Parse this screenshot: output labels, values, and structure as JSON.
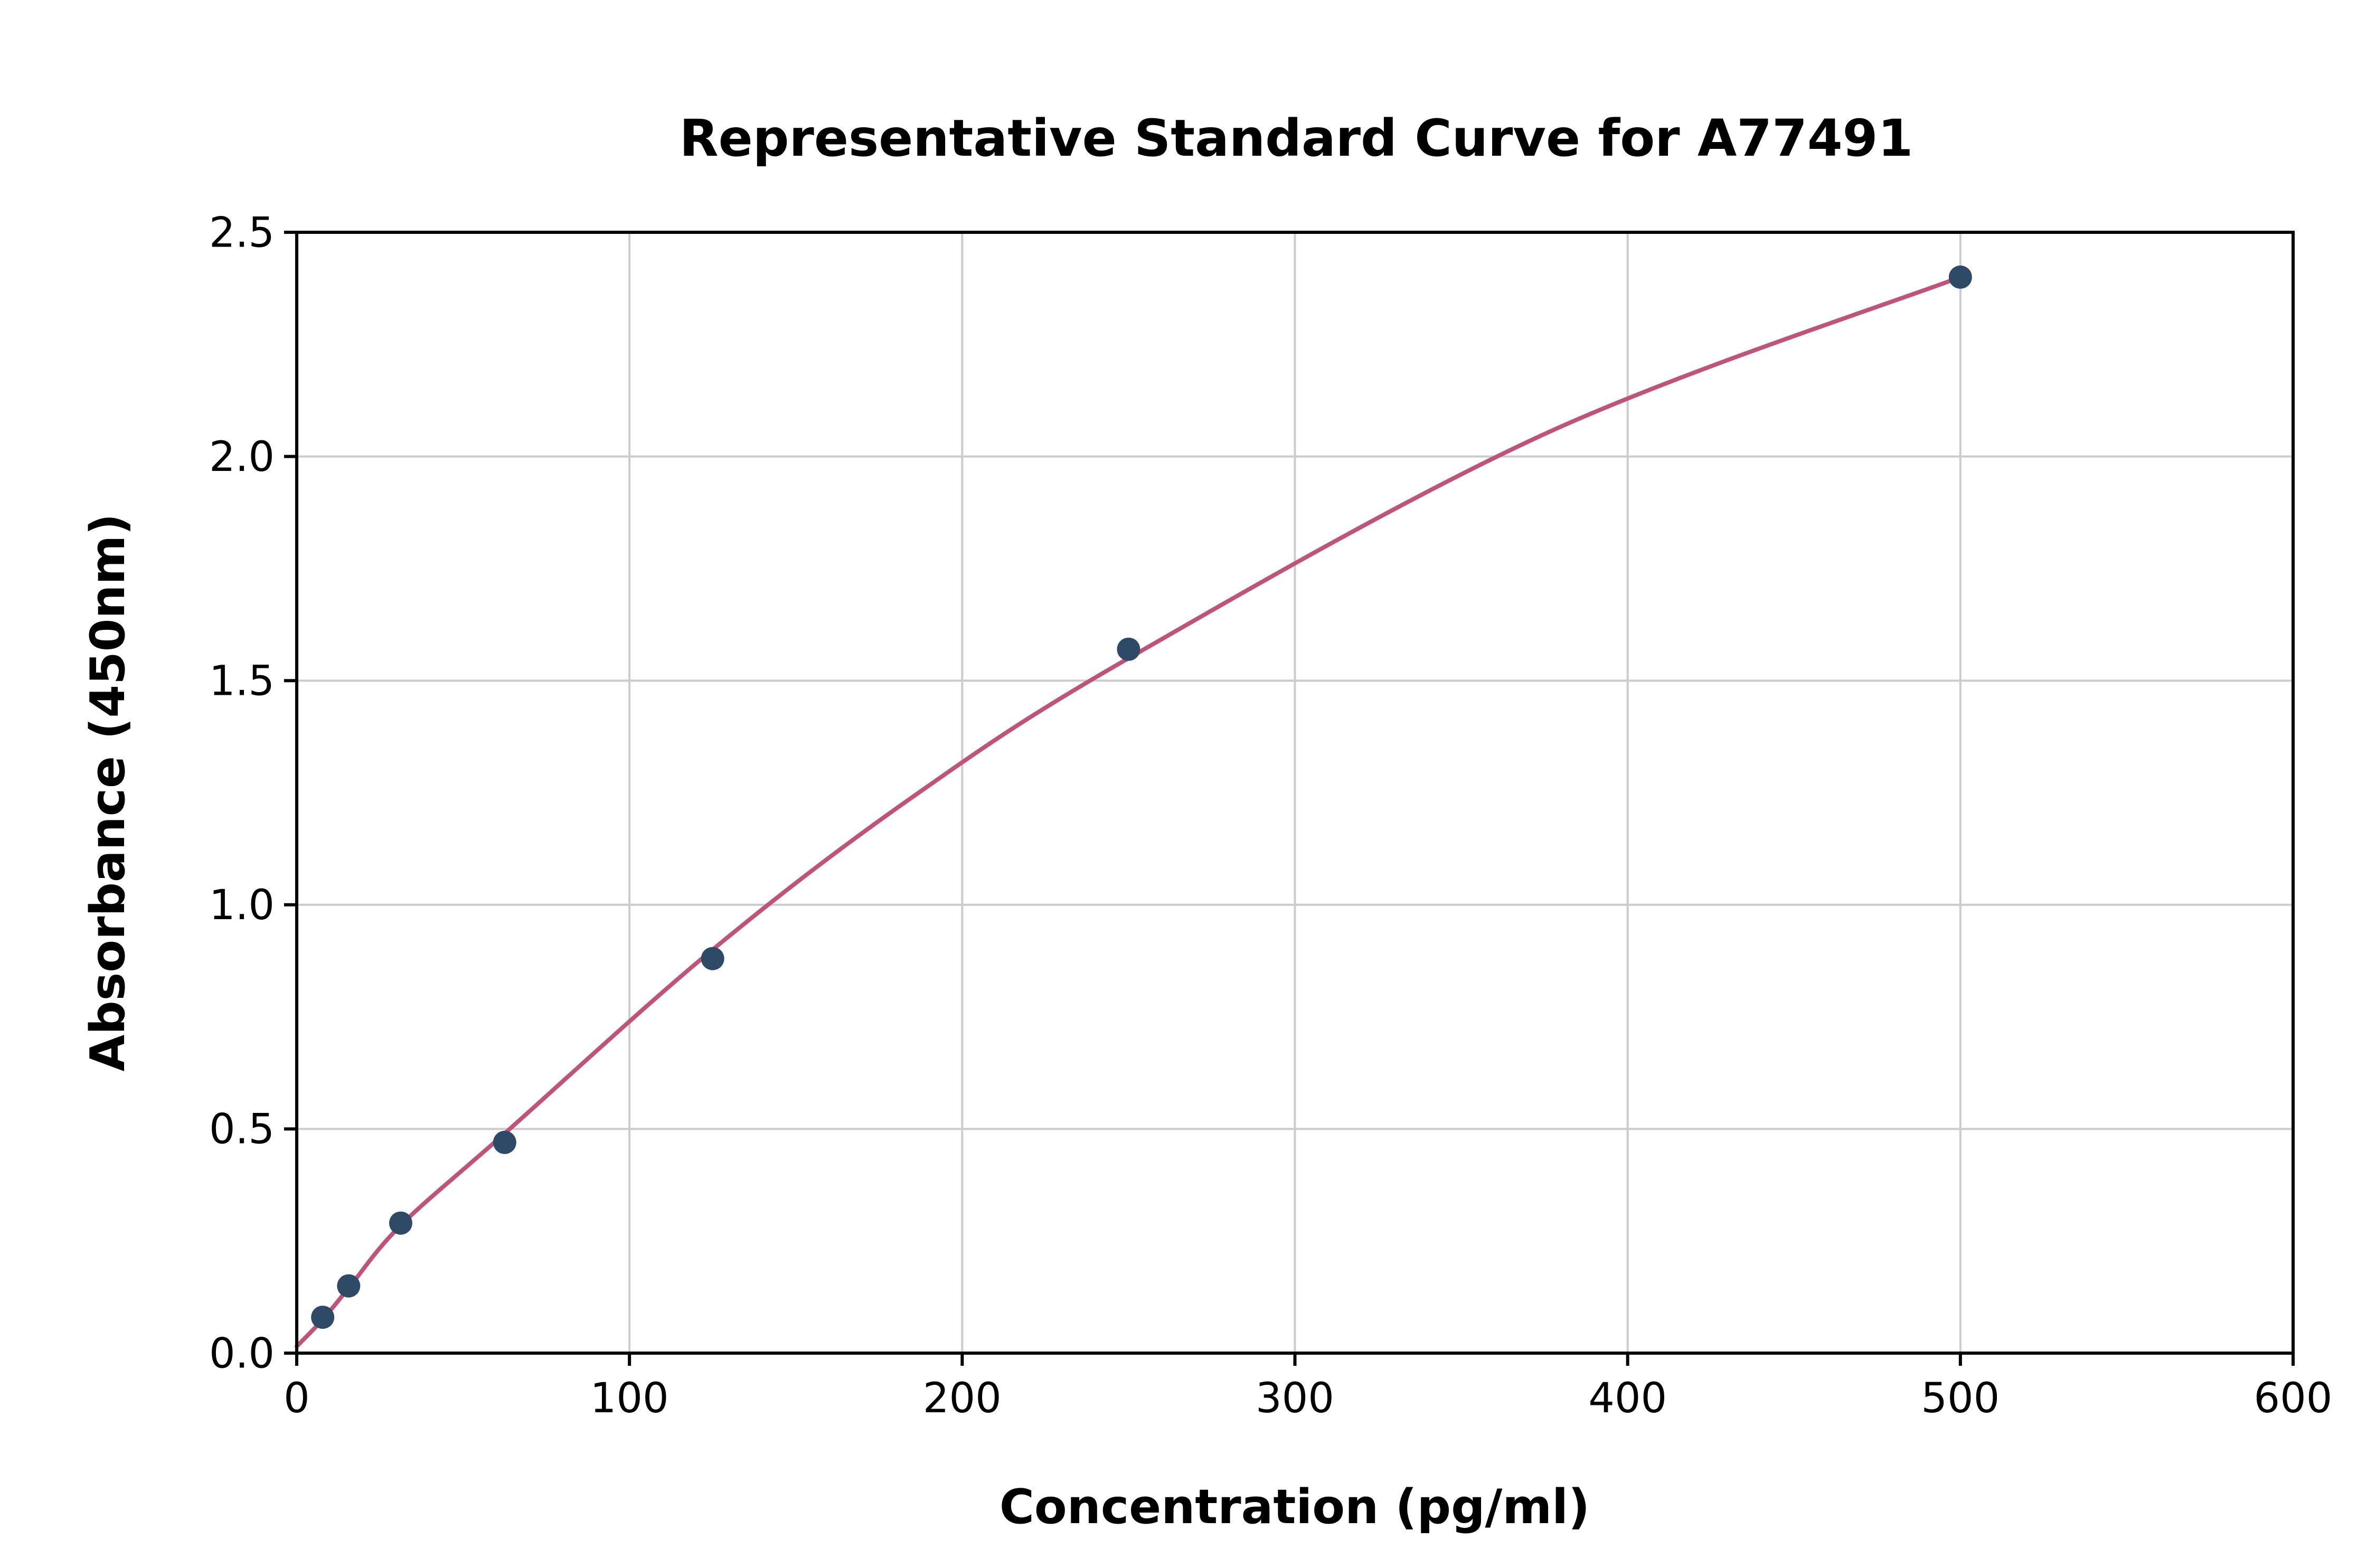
{
  "chart_data": {
    "type": "scatter",
    "title": "Representative Standard Curve for A77491",
    "xlabel": "Concentration (pg/ml)",
    "ylabel": "Absorbance (450nm)",
    "xlim": [
      0,
      600
    ],
    "ylim": [
      0,
      2.5
    ],
    "xticks": [
      0,
      100,
      200,
      300,
      400,
      500,
      600
    ],
    "xtick_labels": [
      "0",
      "100",
      "200",
      "300",
      "400",
      "500",
      "600"
    ],
    "yticks": [
      0,
      0.5,
      1.0,
      1.5,
      2.0,
      2.5
    ],
    "ytick_labels": [
      "0.0",
      "0.5",
      "1.0",
      "1.5",
      "2.0",
      "2.5"
    ],
    "grid": true,
    "legend": "none",
    "points": [
      {
        "x": 7.8,
        "y": 0.08
      },
      {
        "x": 15.6,
        "y": 0.15
      },
      {
        "x": 31.25,
        "y": 0.29
      },
      {
        "x": 62.5,
        "y": 0.47
      },
      {
        "x": 125,
        "y": 0.88
      },
      {
        "x": 250,
        "y": 1.57
      },
      {
        "x": 500,
        "y": 2.4
      }
    ],
    "curve_points": [
      {
        "x": 0,
        "y": 0.015
      },
      {
        "x": 7.8,
        "y": 0.075
      },
      {
        "x": 15.6,
        "y": 0.145
      },
      {
        "x": 31.25,
        "y": 0.285
      },
      {
        "x": 62.5,
        "y": 0.49
      },
      {
        "x": 125,
        "y": 0.9
      },
      {
        "x": 185,
        "y": 1.24
      },
      {
        "x": 250,
        "y": 1.55
      },
      {
        "x": 375,
        "y": 2.05
      },
      {
        "x": 500,
        "y": 2.4
      }
    ],
    "colors": {
      "curve": "#c0537a",
      "point": "#2e4a66",
      "grid": "#cccccc",
      "axis": "#000000",
      "background": "#ffffff"
    }
  }
}
